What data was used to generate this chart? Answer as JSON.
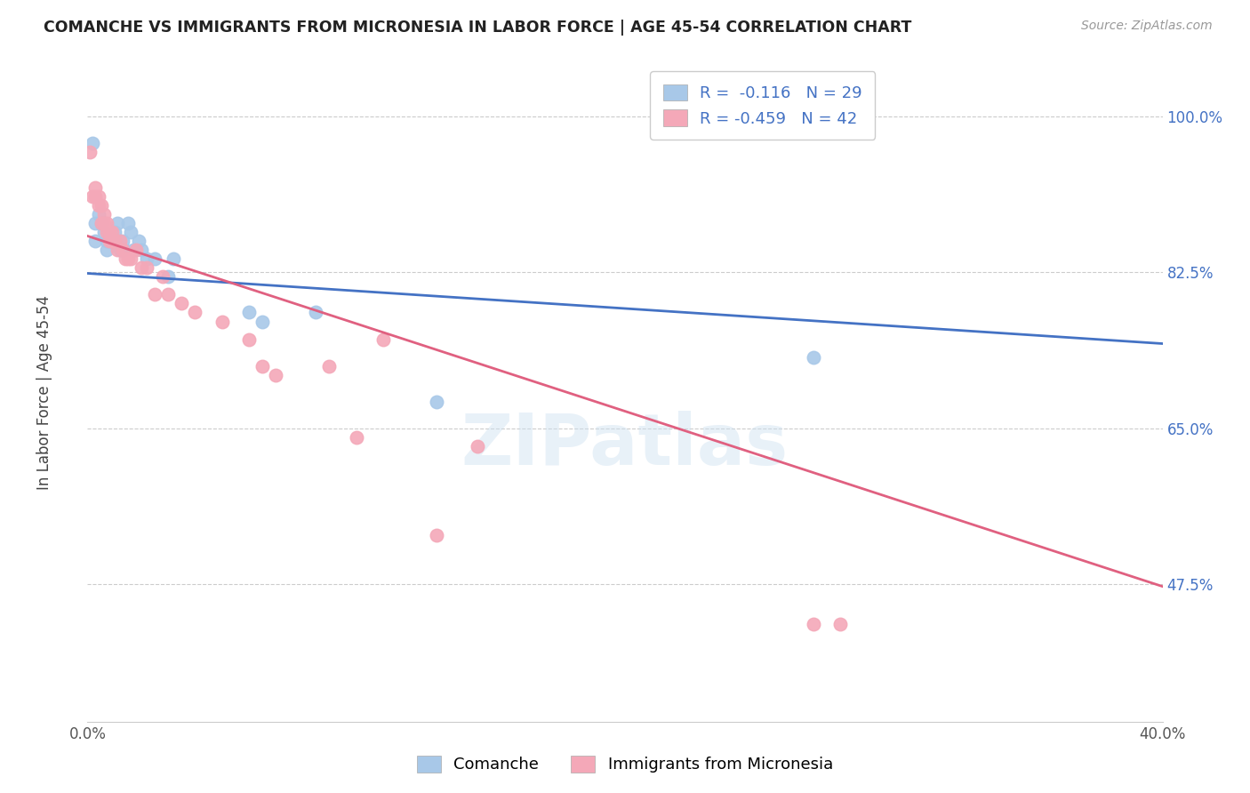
{
  "title": "COMANCHE VS IMMIGRANTS FROM MICRONESIA IN LABOR FORCE | AGE 45-54 CORRELATION CHART",
  "source": "Source: ZipAtlas.com",
  "ylabel": "In Labor Force | Age 45-54",
  "yticks": [
    1.0,
    0.825,
    0.65,
    0.475
  ],
  "ytick_labels": [
    "100.0%",
    "82.5%",
    "65.0%",
    "47.5%"
  ],
  "xlim": [
    0.0,
    0.4
  ],
  "ylim": [
    0.32,
    1.06
  ],
  "watermark": "ZIPatlas",
  "legend_labels": [
    "Comanche",
    "Immigrants from Micronesia"
  ],
  "legend_R": [
    -0.116,
    -0.459
  ],
  "legend_N": [
    29,
    42
  ],
  "blue_color": "#a8c8e8",
  "pink_color": "#f4a8b8",
  "blue_line_color": "#4472c4",
  "pink_line_color": "#e06080",
  "blue_scatter": [
    [
      0.002,
      0.97
    ],
    [
      0.003,
      0.86
    ],
    [
      0.003,
      0.88
    ],
    [
      0.004,
      0.89
    ],
    [
      0.005,
      0.88
    ],
    [
      0.006,
      0.87
    ],
    [
      0.007,
      0.86
    ],
    [
      0.007,
      0.85
    ],
    [
      0.008,
      0.86
    ],
    [
      0.009,
      0.86
    ],
    [
      0.01,
      0.87
    ],
    [
      0.011,
      0.88
    ],
    [
      0.012,
      0.85
    ],
    [
      0.013,
      0.86
    ],
    [
      0.013,
      0.85
    ],
    [
      0.015,
      0.88
    ],
    [
      0.016,
      0.87
    ],
    [
      0.017,
      0.85
    ],
    [
      0.019,
      0.86
    ],
    [
      0.02,
      0.85
    ],
    [
      0.022,
      0.84
    ],
    [
      0.025,
      0.84
    ],
    [
      0.03,
      0.82
    ],
    [
      0.032,
      0.84
    ],
    [
      0.06,
      0.78
    ],
    [
      0.065,
      0.77
    ],
    [
      0.085,
      0.78
    ],
    [
      0.13,
      0.68
    ],
    [
      0.27,
      0.73
    ]
  ],
  "pink_scatter": [
    [
      0.001,
      0.96
    ],
    [
      0.002,
      0.91
    ],
    [
      0.003,
      0.92
    ],
    [
      0.003,
      0.91
    ],
    [
      0.004,
      0.91
    ],
    [
      0.004,
      0.9
    ],
    [
      0.005,
      0.9
    ],
    [
      0.005,
      0.88
    ],
    [
      0.006,
      0.89
    ],
    [
      0.006,
      0.88
    ],
    [
      0.007,
      0.88
    ],
    [
      0.007,
      0.87
    ],
    [
      0.008,
      0.87
    ],
    [
      0.008,
      0.86
    ],
    [
      0.009,
      0.87
    ],
    [
      0.009,
      0.86
    ],
    [
      0.01,
      0.86
    ],
    [
      0.011,
      0.85
    ],
    [
      0.012,
      0.86
    ],
    [
      0.013,
      0.85
    ],
    [
      0.014,
      0.84
    ],
    [
      0.015,
      0.84
    ],
    [
      0.016,
      0.84
    ],
    [
      0.018,
      0.85
    ],
    [
      0.02,
      0.83
    ],
    [
      0.022,
      0.83
    ],
    [
      0.025,
      0.8
    ],
    [
      0.028,
      0.82
    ],
    [
      0.03,
      0.8
    ],
    [
      0.035,
      0.79
    ],
    [
      0.04,
      0.78
    ],
    [
      0.05,
      0.77
    ],
    [
      0.06,
      0.75
    ],
    [
      0.065,
      0.72
    ],
    [
      0.07,
      0.71
    ],
    [
      0.09,
      0.72
    ],
    [
      0.1,
      0.64
    ],
    [
      0.11,
      0.75
    ],
    [
      0.13,
      0.53
    ],
    [
      0.145,
      0.63
    ],
    [
      0.27,
      0.43
    ],
    [
      0.28,
      0.43
    ]
  ],
  "blue_line_x": [
    0.0,
    0.4
  ],
  "blue_line_y": [
    0.824,
    0.745
  ],
  "pink_line_x": [
    0.0,
    0.4
  ],
  "pink_line_y": [
    0.866,
    0.472
  ]
}
